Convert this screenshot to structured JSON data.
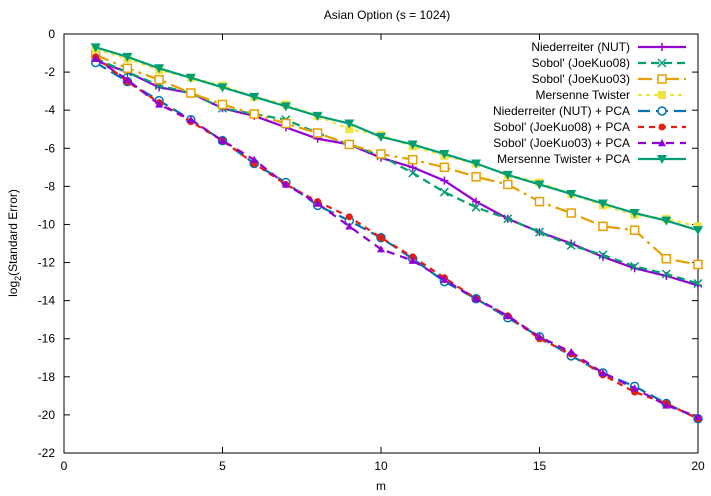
{
  "chart_data": {
    "type": "line",
    "title": "Asian Option (s = 1024)",
    "xlabel": "m",
    "ylabel_main": "log",
    "ylabel_sub": "2",
    "ylabel_rest": "(Standard Error)",
    "xlim": [
      0,
      20
    ],
    "ylim": [
      -22,
      0
    ],
    "xticks": [
      0,
      5,
      10,
      15,
      20
    ],
    "yticks": [
      0,
      -2,
      -4,
      -6,
      -8,
      -10,
      -12,
      -14,
      -16,
      -18,
      -20,
      -22
    ],
    "x": [
      1,
      2,
      3,
      4,
      5,
      6,
      7,
      8,
      9,
      10,
      11,
      12,
      13,
      14,
      15,
      16,
      17,
      18,
      19,
      20
    ],
    "legend_position": "top-right",
    "series": [
      {
        "name": "Niederreiter (NUT)",
        "color": "#9400d3",
        "dash": "",
        "marker": "plus",
        "values": [
          -1.4,
          -2.0,
          -2.8,
          -3.1,
          -3.9,
          -4.3,
          -4.9,
          -5.5,
          -5.8,
          -6.5,
          -7.0,
          -7.7,
          -8.8,
          -9.7,
          -10.4,
          -11.0,
          -11.7,
          -12.3,
          -12.7,
          -13.2
        ]
      },
      {
        "name": "Sobol' (JoeKuo08)",
        "color": "#009e73",
        "dash": "8,5",
        "marker": "cross",
        "values": [
          -1.3,
          -2.0,
          -2.7,
          -3.1,
          -3.9,
          -4.2,
          -4.5,
          -5.2,
          -5.8,
          -6.4,
          -7.3,
          -8.3,
          -9.1,
          -9.7,
          -10.4,
          -11.1,
          -11.6,
          -12.2,
          -12.6,
          -13.1
        ]
      },
      {
        "name": "Sobol' (JoeKuo03)",
        "color": "#e69f00",
        "dash": "14,5,3,5",
        "marker": "square",
        "values": [
          -1.1,
          -1.8,
          -2.4,
          -3.1,
          -3.7,
          -4.2,
          -4.7,
          -5.2,
          -5.8,
          -6.3,
          -6.6,
          -7.0,
          -7.5,
          -7.9,
          -8.8,
          -9.4,
          -10.1,
          -10.3,
          -11.8,
          -12.1
        ]
      },
      {
        "name": "Mersenne Twister",
        "color": "#f0e442",
        "dash": "4,4",
        "marker": "filled-square",
        "values": [
          -0.8,
          -1.3,
          -1.9,
          -2.3,
          -2.7,
          -3.3,
          -3.7,
          -4.3,
          -5.0,
          -5.3,
          -5.9,
          -6.4,
          -6.8,
          -7.4,
          -7.8,
          -8.4,
          -9.0,
          -9.5,
          -9.7,
          -10.1
        ]
      },
      {
        "name": "Niederreiter (NUT) + PCA",
        "color": "#0072b2",
        "dash": "12,6",
        "marker": "circle",
        "values": [
          -1.5,
          -2.5,
          -3.5,
          -4.5,
          -5.6,
          -6.8,
          -7.8,
          -9.0,
          -9.8,
          -10.7,
          -11.8,
          -13.0,
          -13.9,
          -14.9,
          -15.9,
          -16.9,
          -17.8,
          -18.5,
          -19.4,
          -20.2
        ]
      },
      {
        "name": "Sobol' (JoeKuo08) + PCA",
        "color": "#e51e10",
        "dash": "6,5",
        "marker": "filled-circle",
        "values": [
          -1.2,
          -2.5,
          -3.6,
          -4.6,
          -5.6,
          -6.8,
          -7.9,
          -8.8,
          -9.6,
          -10.7,
          -11.7,
          -12.8,
          -13.9,
          -14.8,
          -16.0,
          -16.8,
          -17.9,
          -18.8,
          -19.4,
          -20.2
        ]
      },
      {
        "name": "Sobol' (JoeKuo03) + PCA",
        "color": "#9400d3",
        "dash": "8,6",
        "marker": "triangle",
        "values": [
          -1.3,
          -2.4,
          -3.7,
          -4.5,
          -5.6,
          -6.6,
          -7.9,
          -8.9,
          -10.1,
          -11.3,
          -11.9,
          -12.9,
          -13.9,
          -14.8,
          -15.9,
          -16.7,
          -17.8,
          -18.6,
          -19.5,
          -20.1
        ]
      },
      {
        "name": "Mersenne Twister + PCA",
        "color": "#009e73",
        "dash": "",
        "marker": "filled-triangle-down",
        "values": [
          -0.7,
          -1.2,
          -1.8,
          -2.3,
          -2.8,
          -3.3,
          -3.8,
          -4.3,
          -4.7,
          -5.4,
          -5.8,
          -6.3,
          -6.8,
          -7.4,
          -7.9,
          -8.4,
          -8.9,
          -9.4,
          -9.8,
          -10.3
        ]
      }
    ]
  }
}
